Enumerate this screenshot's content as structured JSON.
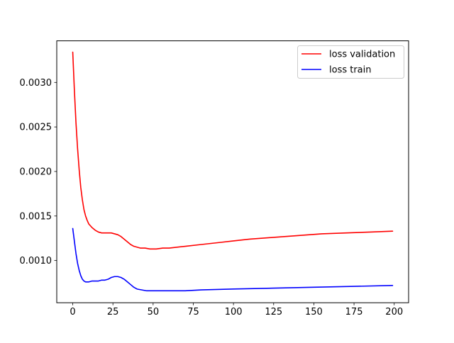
{
  "chart_data": {
    "type": "line",
    "title": "",
    "xlabel": "",
    "ylabel": "",
    "xlim": [
      -9.95,
      208.95
    ],
    "ylim": [
      0.000526,
      0.003467
    ],
    "x_ticks": [
      0,
      25,
      50,
      75,
      100,
      125,
      150,
      175,
      200
    ],
    "x_tick_labels": [
      "0",
      "25",
      "50",
      "75",
      "100",
      "125",
      "150",
      "175",
      "200"
    ],
    "y_ticks": [
      0.001,
      0.0015,
      0.002,
      0.0025,
      0.003
    ],
    "y_tick_labels": [
      "0.0010",
      "0.0015",
      "0.0020",
      "0.0025",
      "0.0030"
    ],
    "grid": false,
    "legend_position": "top-right",
    "series": [
      {
        "name": "loss validation",
        "color": "#ff0000",
        "points": [
          [
            0,
            0.00334
          ],
          [
            1,
            0.00292
          ],
          [
            2,
            0.00255
          ],
          [
            3,
            0.00226
          ],
          [
            4,
            0.00202
          ],
          [
            5,
            0.00182
          ],
          [
            6,
            0.00168
          ],
          [
            7,
            0.00157
          ],
          [
            8,
            0.0015
          ],
          [
            9,
            0.00145
          ],
          [
            10,
            0.00141
          ],
          [
            12,
            0.00137
          ],
          [
            14,
            0.00134
          ],
          [
            16,
            0.00132
          ],
          [
            18,
            0.00131
          ],
          [
            20,
            0.00131
          ],
          [
            22,
            0.00131
          ],
          [
            24,
            0.00131
          ],
          [
            26,
            0.0013
          ],
          [
            28,
            0.00129
          ],
          [
            30,
            0.00127
          ],
          [
            32,
            0.00124
          ],
          [
            34,
            0.00121
          ],
          [
            36,
            0.00118
          ],
          [
            38,
            0.00116
          ],
          [
            40,
            0.00115
          ],
          [
            42,
            0.00114
          ],
          [
            45,
            0.00114
          ],
          [
            48,
            0.00113
          ],
          [
            52,
            0.00113
          ],
          [
            56,
            0.00114
          ],
          [
            60,
            0.00114
          ],
          [
            70,
            0.00116
          ],
          [
            80,
            0.00118
          ],
          [
            90,
            0.0012
          ],
          [
            100,
            0.00122
          ],
          [
            110,
            0.00124
          ],
          [
            125,
            0.00126
          ],
          [
            140,
            0.00128
          ],
          [
            155,
            0.0013
          ],
          [
            170,
            0.00131
          ],
          [
            185,
            0.00132
          ],
          [
            199,
            0.00133
          ]
        ]
      },
      {
        "name": "loss train",
        "color": "#0000ff",
        "points": [
          [
            0,
            0.00136
          ],
          [
            1,
            0.00122
          ],
          [
            2,
            0.00108
          ],
          [
            3,
            0.00097
          ],
          [
            4,
            0.00089
          ],
          [
            5,
            0.00083
          ],
          [
            6,
            0.00079
          ],
          [
            7,
            0.00077
          ],
          [
            8,
            0.00076
          ],
          [
            9,
            0.00076
          ],
          [
            10,
            0.00076
          ],
          [
            12,
            0.00077
          ],
          [
            14,
            0.00077
          ],
          [
            16,
            0.00077
          ],
          [
            18,
            0.00078
          ],
          [
            20,
            0.00078
          ],
          [
            22,
            0.00079
          ],
          [
            24,
            0.00081
          ],
          [
            26,
            0.00082
          ],
          [
            28,
            0.00082
          ],
          [
            30,
            0.00081
          ],
          [
            32,
            0.00079
          ],
          [
            34,
            0.00076
          ],
          [
            36,
            0.00073
          ],
          [
            38,
            0.0007
          ],
          [
            40,
            0.00068
          ],
          [
            43,
            0.00067
          ],
          [
            46,
            0.00066
          ],
          [
            50,
            0.00066
          ],
          [
            55,
            0.00066
          ],
          [
            60,
            0.00066
          ],
          [
            70,
            0.00066
          ],
          [
            80,
            0.00067
          ],
          [
            100,
            0.00068
          ],
          [
            125,
            0.00069
          ],
          [
            150,
            0.0007
          ],
          [
            175,
            0.00071
          ],
          [
            199,
            0.00072
          ]
        ]
      }
    ]
  }
}
